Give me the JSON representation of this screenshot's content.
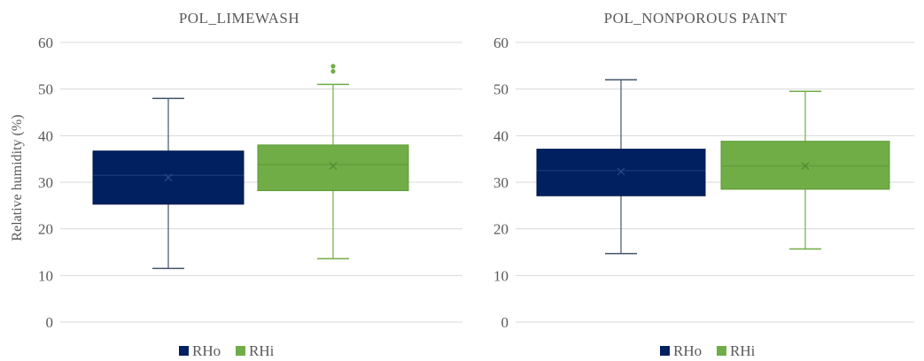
{
  "colors": {
    "RHo": "#002060",
    "RHi": "#70AD47",
    "grid": "#D9D9D9",
    "text": "#595959",
    "whisker_RHo": "#44546A",
    "whisker_RHi": "#70AD47"
  },
  "chart_data": [
    {
      "type": "box",
      "title": "POL_LIMEWASH",
      "ylabel": "Relative humidity (%)",
      "ylim": [
        0,
        60
      ],
      "yticks": [
        0,
        10,
        20,
        30,
        40,
        50,
        60
      ],
      "grid": true,
      "legend": "bottom",
      "series": [
        {
          "name": "RHo",
          "min": 11.5,
          "q1": 25.3,
          "median": 31.5,
          "q3": 36.7,
          "max": 48.0,
          "mean": 31.0,
          "outliers": []
        },
        {
          "name": "RHi",
          "min": 13.6,
          "q1": 28.2,
          "median": 33.8,
          "q3": 38.0,
          "max": 51.0,
          "mean": 33.5,
          "outliers": [
            53.8,
            54.9
          ]
        }
      ]
    },
    {
      "type": "box",
      "title": "POL_NONPOROUS PAINT",
      "ylabel": "",
      "ylim": [
        0,
        60
      ],
      "yticks": [
        0,
        10,
        20,
        30,
        40,
        50,
        60
      ],
      "grid": true,
      "legend": "bottom",
      "series": [
        {
          "name": "RHo",
          "min": 14.7,
          "q1": 27.1,
          "median": 32.5,
          "q3": 37.1,
          "max": 52.0,
          "mean": 32.3,
          "outliers": []
        },
        {
          "name": "RHi",
          "min": 15.7,
          "q1": 28.5,
          "median": 33.5,
          "q3": 38.8,
          "max": 49.5,
          "mean": 33.5,
          "outliers": []
        }
      ]
    }
  ]
}
